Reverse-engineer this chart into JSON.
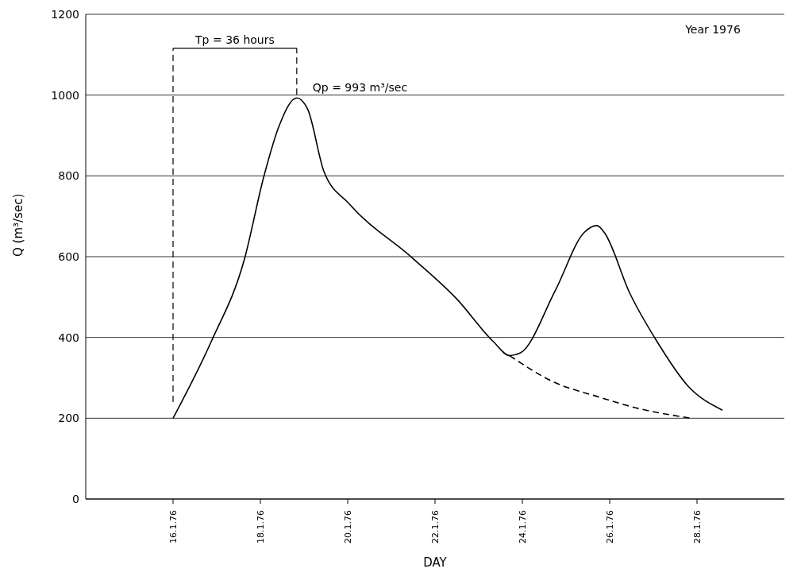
{
  "chart_data": {
    "type": "line",
    "xlabel": "DAY",
    "ylabel": "Q (m³/sec)",
    "annotations": [
      "Year   1976",
      "Tp = 36 hours",
      {
        "text": "Qp = 993 m³/sec",
        "x": "1976-01-18T20:00",
        "y": 993
      }
    ],
    "ref_lines": [
      {
        "axis": "x",
        "value": "1976-01-16T00:00",
        "color": "#000000",
        "line_style": "dashed"
      },
      {
        "axis": "x",
        "value": "1976-01-18T20:00",
        "color": "#000000",
        "line_style": "dashed"
      }
    ],
    "series": [
      {
        "color": "#000000",
        "line_style": "solid",
        "x": [
          "1976-01-16T00:00",
          "1976-01-16T21:00",
          "1976-01-17T15:00",
          "1976-01-18T02:00",
          "1976-01-18T10:00",
          "1976-01-18T20:00",
          "1976-01-19T02:00",
          "1976-01-19T11:00",
          "1976-01-20T01:00",
          "1976-01-21T12:00",
          "1976-01-22T12:00",
          "1976-01-23T08:00",
          "1976-01-23T17:00",
          "1976-01-23T23:00",
          "1976-01-24T18:00",
          "1976-01-25T10:00",
          "1976-01-25T17:00",
          "1976-01-25T21:00",
          "1976-01-26T11:00",
          "1976-01-27T02:00",
          "1976-01-27T19:00",
          "1976-01-28T14:00"
        ],
        "values": [
          200,
          390,
          590,
          800,
          920,
          993,
          965,
          810,
          730,
          595,
          495,
          390,
          355,
          362,
          515,
          660,
          677,
          660,
          510,
          390,
          280,
          220
        ]
      },
      {
        "color": "#000000",
        "line_style": "dashed",
        "x": [
          "1976-01-23T17:00",
          "1976-01-24T18:00",
          "1976-01-25T17:00",
          "1976-01-26T16:00",
          "1976-01-27T21:00"
        ],
        "values": [
          355,
          288,
          254,
          224,
          200
        ]
      }
    ],
    "xlim": [
      "1976-01-14",
      "1976-01-30"
    ],
    "xticks": [
      {
        "value": "1976-01-16",
        "label": "16.1.76"
      },
      {
        "value": "1976-01-18",
        "label": "18.1.76"
      },
      {
        "value": "1976-01-20",
        "label": "20.1.76"
      },
      {
        "value": "1976-01-22",
        "label": "22.1.76"
      },
      {
        "value": "1976-01-24",
        "label": "24.1.76"
      },
      {
        "value": "1976-01-26",
        "label": "26.1.76"
      },
      {
        "value": "1976-01-28",
        "label": "28.1.76"
      }
    ],
    "ylim": [
      0,
      1200
    ],
    "yticks": [
      0,
      200,
      400,
      600,
      800,
      1000,
      1200
    ],
    "grid": "y",
    "marker": "none"
  }
}
